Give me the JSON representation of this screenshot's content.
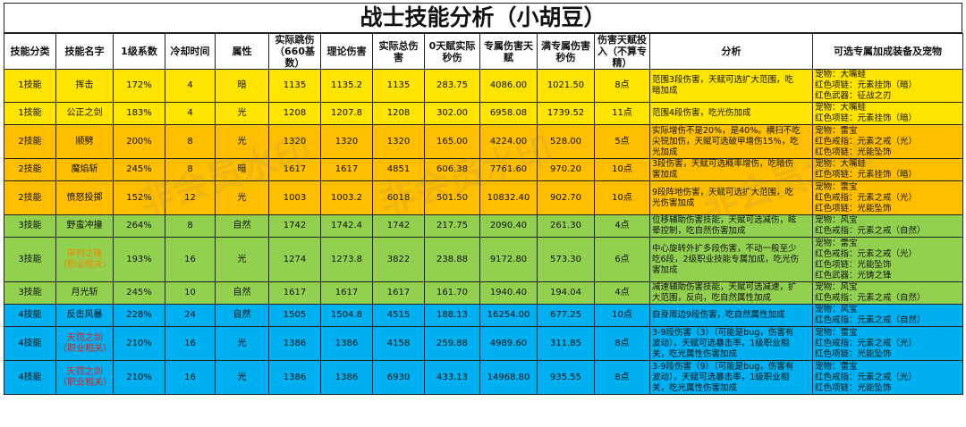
{
  "title": "战士技能分析（小胡豆）",
  "watermark": "非会员水印",
  "colors": {
    "yellow": "#ffe400",
    "orange": "#ffbf00",
    "green": "#92d050",
    "blue": "#00b0f0",
    "red_text": "#e02020",
    "orange_text": "#f08a00"
  },
  "headers": [
    "技能分类",
    "技能名字",
    "1级系数",
    "冷却时间",
    "属性",
    "实际跳伤（660基数）",
    "理论伤害",
    "实际总伤害",
    "0天赋实际秒伤",
    "专属伤害天赋",
    "满专属伤害秒伤",
    "伤害天赋投入（不算专精）",
    "分析",
    "可选专属加成装备及宠物"
  ],
  "rows": [
    {
      "color": "yellow",
      "cat": "1技能",
      "name": "挥击",
      "name_style": "",
      "coef": "172%",
      "cd": "4",
      "attr": "暗",
      "jump": "1135",
      "theory": "1135.2",
      "total": "1135",
      "dps0": "283.75",
      "talent": "4086.00",
      "dpsmax": "1021.50",
      "points": "8点",
      "analysis": "范围3段伤害，天赋可选扩大范围，吃\n暗加成",
      "equip": "宠物：大嘴蛙\n红色项链：元素挂饰（暗）\n红色武器：征战之刃"
    },
    {
      "color": "yellow",
      "cat": "1技能",
      "name": "公正之剑",
      "name_style": "",
      "coef": "183%",
      "cd": "4",
      "attr": "光",
      "jump": "1208",
      "theory": "1207.8",
      "total": "1208",
      "dps0": "302.00",
      "talent": "6958.08",
      "dpsmax": "1739.52",
      "points": "11点",
      "analysis": "范围4段伤害，吃光伤加成",
      "equip": "宠物：大嘴蛙\n红色项链：元素挂饰（暗）"
    },
    {
      "color": "orange",
      "cat": "2技能",
      "name": "顺劈",
      "name_style": "",
      "coef": "200%",
      "cd": "8",
      "attr": "光",
      "jump": "1320",
      "theory": "1320",
      "total": "1320",
      "dps0": "165.00",
      "talent": "4224.00",
      "dpsmax": "528.00",
      "points": "5点",
      "analysis": "实际增伤不是20%，是40%。横扫不吃\n尖锐加伤，天赋可选破甲增伤15%，吃\n光加成",
      "equip": "宠物：雷宝\n红色戒指：元素之戒（光）\n红色项链：光能坠饰"
    },
    {
      "color": "orange",
      "cat": "2技能",
      "name": "魔焰斩",
      "name_style": "",
      "coef": "245%",
      "cd": "8",
      "attr": "暗",
      "jump": "1617",
      "theory": "1617",
      "total": "4851",
      "dps0": "606.38",
      "talent": "7761.60",
      "dpsmax": "970.20",
      "points": "10点",
      "analysis": "3段伤害，天赋可选概率增伤，吃暗伤\n害加成",
      "equip": "宠物：大嘴蛙\n红色项链：元素挂饰（暗）"
    },
    {
      "color": "orange",
      "cat": "2技能",
      "name": "愤怒投掷",
      "name_style": "",
      "coef": "152%",
      "cd": "12",
      "attr": "光",
      "jump": "1003",
      "theory": "1003.2",
      "total": "6018",
      "dps0": "501.50",
      "talent": "10832.40",
      "dpsmax": "902.70",
      "points": "10点",
      "analysis": "9段阵地伤害，天赋可选扩大范围，吃\n光伤害加成",
      "equip": "宠物：雷宝\n红色戒指：元素之戒（光）\n红色项链：光能坠饰"
    },
    {
      "color": "green",
      "cat": "3技能",
      "name": "野蛮冲撞",
      "name_style": "",
      "coef": "264%",
      "cd": "8",
      "attr": "自然",
      "jump": "1742",
      "theory": "1742.4",
      "total": "1742",
      "dps0": "217.75",
      "talent": "2090.40",
      "dpsmax": "261.30",
      "points": "4点",
      "analysis": "位移辅助伤害技能，天赋可选减伤，眩\n晕控制，吃自然伤害加成",
      "equip": "宠物：风宝\n红色戒指：元素之戒（自然）"
    },
    {
      "color": "green",
      "cat": "3技能",
      "name": "审判之锤（职业相关）",
      "name_style": "orange",
      "coef": "193%",
      "cd": "16",
      "attr": "光",
      "jump": "1274",
      "theory": "1273.8",
      "total": "3822",
      "dps0": "238.88",
      "talent": "9172.80",
      "dpsmax": "573.30",
      "points": "6点",
      "analysis": "中心旋转外扩多段伤害，不动一般至少\n吃6段，2级职业技能专属加成，吃光伤\n害加成",
      "equip": "宠物：雷宝\n红色戒指：元素之戒（光）\n红色项链：光能坠饰\n红色武器：光铸之锋"
    },
    {
      "color": "green",
      "cat": "3技能",
      "name": "月光斩",
      "name_style": "",
      "coef": "245%",
      "cd": "10",
      "attr": "自然",
      "jump": "1617",
      "theory": "1617",
      "total": "1617",
      "dps0": "161.70",
      "talent": "1940.40",
      "dpsmax": "194.04",
      "points": "4点",
      "analysis": "减速辅助伤害技能，天赋可选减速，扩\n大范围，反向，吃自然属性加成",
      "equip": "宠物：风宝\n红色戒指：元素之戒（自然）"
    },
    {
      "color": "blue",
      "cat": "4技能",
      "name": "反击风暴",
      "name_style": "",
      "coef": "228%",
      "cd": "24",
      "attr": "自然",
      "jump": "1505",
      "theory": "1504.8",
      "total": "4515",
      "dps0": "188.13",
      "talent": "16254.00",
      "dpsmax": "677.25",
      "points": "10点",
      "analysis": "自身周边9段伤害，吃自然属性加成",
      "equip": "宠物：风宝\n红色戒指：元素之戒（自然）"
    },
    {
      "color": "blue",
      "cat": "4技能",
      "name": "天罚之剑（职业相关）",
      "name_style": "red",
      "coef": "210%",
      "cd": "16",
      "attr": "光",
      "jump": "1386",
      "theory": "1386",
      "total": "4158",
      "dps0": "259.88",
      "talent": "4989.60",
      "dpsmax": "311.85",
      "points": "8点",
      "analysis": "3-9段伤害（3）（可能是bug，伤害有\n波动），天赋可选暴击率，1级职业相\n关，吃光属性伤害加成",
      "equip": "宠物：雷宝\n红色戒指：元素之戒（光）\n红色项链：光能坠饰"
    },
    {
      "color": "blue",
      "cat": "4技能",
      "name": "天罚之剑（职业相关）",
      "name_style": "red",
      "coef": "210%",
      "cd": "16",
      "attr": "光",
      "jump": "1386",
      "theory": "1386",
      "total": "6930",
      "dps0": "433.13",
      "talent": "14968.80",
      "dpsmax": "935.55",
      "points": "8点",
      "analysis": "3-9段伤害（9）（可能是bug，伤害有\n波动），天赋可选暴击率，1级职业相\n关，吃光属性伤害加成",
      "equip": "宠物：雷宝\n红色戒指：元素之戒（光）\n红色项链：光能坠饰"
    }
  ]
}
